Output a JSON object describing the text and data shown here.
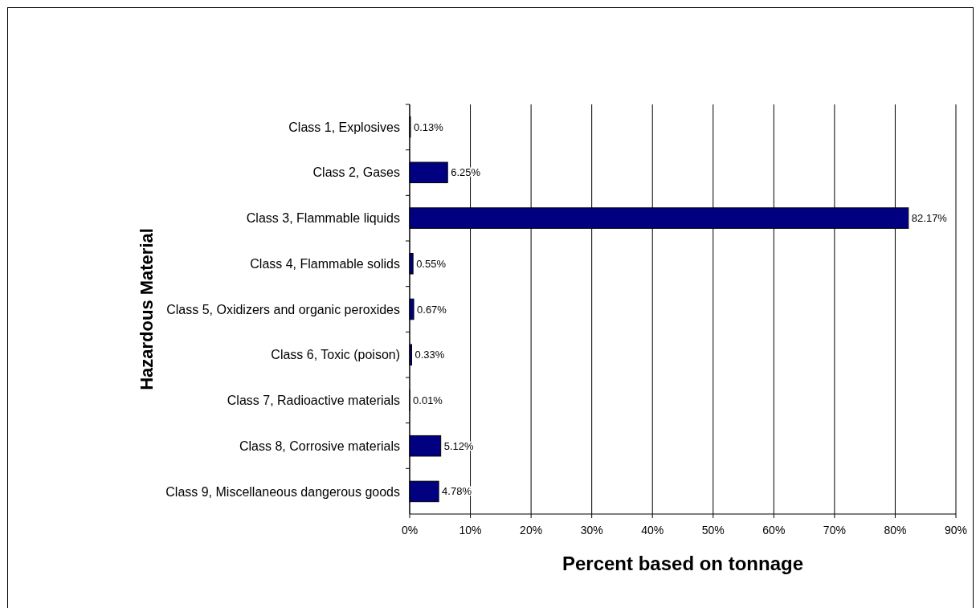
{
  "chart_data": {
    "type": "bar",
    "orientation": "horizontal",
    "xlabel": "Percent based on tonnage",
    "ylabel": "Hazardous Material",
    "categories": [
      "Class 1, Explosives",
      "Class 2, Gases",
      "Class 3, Flammable liquids",
      "Class 4, Flammable solids",
      "Class 5, Oxidizers and organic peroxides",
      "Class 6, Toxic (poison)",
      "Class 7, Radioactive materials",
      "Class 8, Corrosive materials",
      "Class 9, Miscellaneous dangerous goods"
    ],
    "values": [
      0.13,
      6.25,
      82.17,
      0.55,
      0.67,
      0.33,
      0.01,
      5.12,
      4.78
    ],
    "value_labels": [
      "0.13%",
      "6.25%",
      "82.17%",
      "0.55%",
      "0.67%",
      "0.33%",
      "0.01%",
      "5.12%",
      "4.78%"
    ],
    "color": "#000080",
    "xlim": [
      0,
      90
    ],
    "xticks": [
      {
        "value": 0,
        "label": "0%"
      },
      {
        "value": 10,
        "label": "10%"
      },
      {
        "value": 20,
        "label": "20%"
      },
      {
        "value": 30,
        "label": "30%"
      },
      {
        "value": 40,
        "label": "40%"
      },
      {
        "value": 50,
        "label": "50%"
      },
      {
        "value": 60,
        "label": "60%"
      },
      {
        "value": 70,
        "label": "70%"
      },
      {
        "value": 80,
        "label": "80%"
      },
      {
        "value": 90,
        "label": "90%"
      }
    ],
    "grid": "x"
  }
}
